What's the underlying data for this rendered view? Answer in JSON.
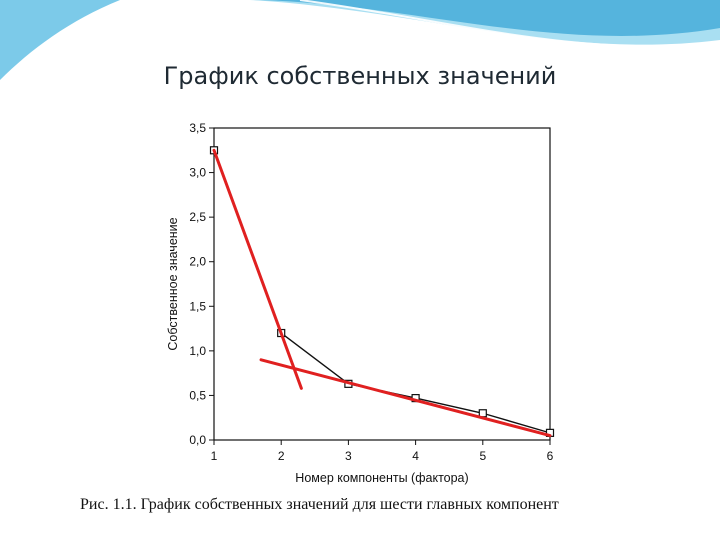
{
  "slide": {
    "title": "График собственных значений",
    "caption": "Рис. 1.1. График собственных значений для шести главных компонент",
    "colors": {
      "wave_dark": "#3aa5d6",
      "wave_light": "#a9dff2",
      "fit_line": "#e02020"
    }
  },
  "chart_data": {
    "type": "line",
    "xlabel": "Номер компоненты (фактора)",
    "ylabel": "Собственное значение",
    "x": [
      1,
      2,
      3,
      4,
      5,
      6
    ],
    "x_tick_labels": [
      "1",
      "2",
      "3",
      "4",
      "5",
      "6"
    ],
    "y_ticks": [
      0,
      0.5,
      1,
      1.5,
      2,
      2.5,
      3,
      3.5
    ],
    "y_tick_labels": [
      "0,0",
      "0,5",
      "1,0",
      "1,5",
      "2,0",
      "2,5",
      "3,0",
      "3,5"
    ],
    "xlim": [
      1,
      6
    ],
    "ylim": [
      0,
      3.5
    ],
    "grid": false,
    "series": [
      {
        "values": [
          3.25,
          1.2,
          0.63,
          0.47,
          0.3,
          0.08
        ],
        "color": "#111111",
        "marker": "square"
      }
    ],
    "annotation_lines": [
      {
        "x": [
          1,
          2.3
        ],
        "y": [
          3.25,
          0.58
        ],
        "color": "#e02020"
      },
      {
        "x": [
          1.7,
          6
        ],
        "y": [
          0.9,
          0.05
        ],
        "color": "#e02020"
      }
    ]
  }
}
